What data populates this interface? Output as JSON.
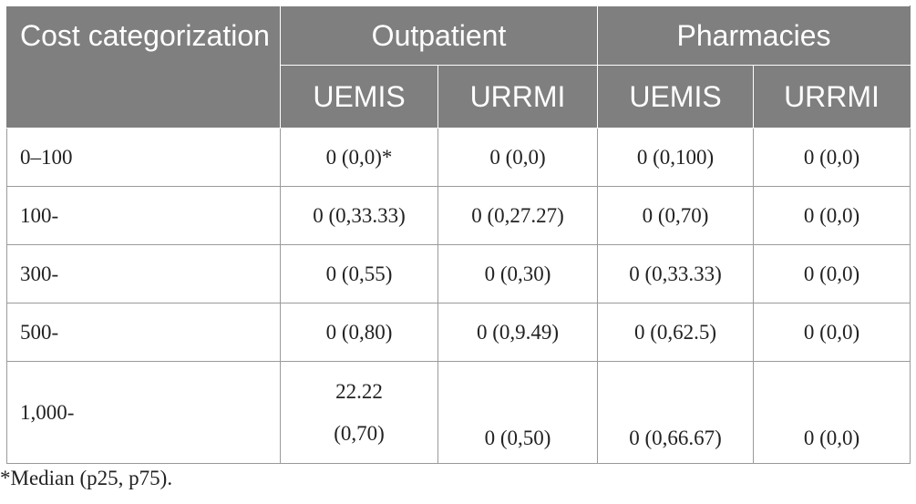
{
  "table": {
    "header": {
      "corner_label": "Cost categorization",
      "groups": [
        "Outpatient",
        "Pharmacies"
      ],
      "subheaders": [
        "UEMIS",
        "URRMI",
        "UEMIS",
        "URRMI"
      ]
    },
    "rows": [
      {
        "label": "0–100",
        "cells": [
          "0 (0,0)*",
          "0 (0,0)",
          "0 (0,100)",
          "0 (0,0)"
        ]
      },
      {
        "label": "100-",
        "cells": [
          "0 (0,33.33)",
          "0 (0,27.27)",
          "0 (0,70)",
          "0 (0,0)"
        ]
      },
      {
        "label": "300-",
        "cells": [
          "0 (0,55)",
          "0 (0,30)",
          "0 (0,33.33)",
          "0 (0,0)"
        ]
      },
      {
        "label": "500-",
        "cells": [
          "0 (0,80)",
          "0 (0,9.49)",
          "0 (0,62.5)",
          "0 (0,0)"
        ]
      },
      {
        "label": "1,000-",
        "cells": [
          "22.22 (0,70)",
          "0 (0,50)",
          "0 (0,66.67)",
          "0 (0,0)"
        ],
        "first_cell_lines": [
          "22.22",
          "(0,70)"
        ]
      }
    ]
  },
  "footnote": "*Median (p25, p75)."
}
